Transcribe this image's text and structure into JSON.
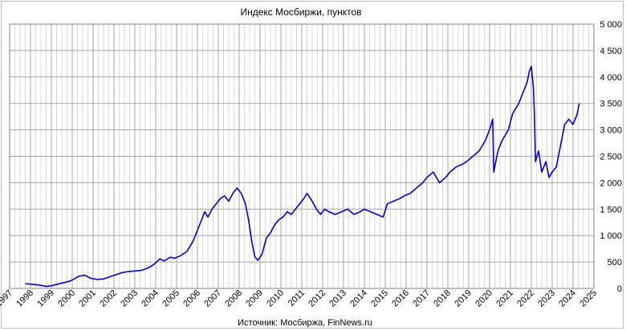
{
  "chart_data": {
    "type": "line",
    "title": "Индекс Мосбиржи, пунктов",
    "source": "Источник: Мосбиржа, FinNews.ru",
    "xlabel": "",
    "ylabel": "",
    "xlim": [
      1997,
      2025
    ],
    "ylim": [
      0,
      5000
    ],
    "x_ticks": [
      "1997",
      "1998",
      "1999",
      "2000",
      "2001",
      "2002",
      "2003",
      "2004",
      "2005",
      "2006",
      "2007",
      "2008",
      "2009",
      "2010",
      "2011",
      "2012",
      "2013",
      "2014",
      "2015",
      "2016",
      "2017",
      "2018",
      "2019",
      "2020",
      "2021",
      "2022",
      "2023",
      "2024",
      "2025"
    ],
    "y_ticks": [
      "0",
      "500",
      "1 000",
      "1 500",
      "2 000",
      "2 500",
      "3 000",
      "3 500",
      "4 000",
      "4 500",
      "5 000"
    ],
    "y_tick_values": [
      0,
      500,
      1000,
      1500,
      2000,
      2500,
      3000,
      3500,
      4000,
      4500,
      5000
    ],
    "grid": true,
    "legend": "none",
    "series": [
      {
        "color": "#0000cc",
        "x": [
          1997.75,
          1998.0,
          1998.3,
          1998.6,
          1998.8,
          1999.0,
          1999.3,
          1999.6,
          1999.9,
          2000.1,
          2000.3,
          2000.6,
          2000.9,
          2001.2,
          2001.5,
          2001.8,
          2002.1,
          2002.4,
          2002.7,
          2003.0,
          2003.3,
          2003.6,
          2003.9,
          2004.2,
          2004.4,
          2004.7,
          2004.9,
          2005.2,
          2005.5,
          2005.8,
          2006.0,
          2006.2,
          2006.35,
          2006.5,
          2006.7,
          2006.9,
          2007.1,
          2007.3,
          2007.5,
          2007.7,
          2007.9,
          2008.1,
          2008.3,
          2008.45,
          2008.6,
          2008.75,
          2008.9,
          2009.1,
          2009.3,
          2009.5,
          2009.7,
          2009.9,
          2010.1,
          2010.3,
          2010.5,
          2010.7,
          2010.9,
          2011.1,
          2011.25,
          2011.5,
          2011.7,
          2011.9,
          2012.1,
          2012.3,
          2012.6,
          2012.9,
          2013.2,
          2013.5,
          2013.8,
          2014.0,
          2014.3,
          2014.6,
          2014.9,
          2015.1,
          2015.4,
          2015.7,
          2015.9,
          2016.2,
          2016.5,
          2016.8,
          2017.0,
          2017.3,
          2017.6,
          2017.9,
          2018.1,
          2018.4,
          2018.7,
          2018.9,
          2019.2,
          2019.5,
          2019.8,
          2020.0,
          2020.15,
          2020.2,
          2020.4,
          2020.6,
          2020.9,
          2021.1,
          2021.4,
          2021.6,
          2021.8,
          2021.9,
          2022.0,
          2022.1,
          2022.15,
          2022.2,
          2022.35,
          2022.5,
          2022.7,
          2022.85,
          2023.0,
          2023.2,
          2023.4,
          2023.6,
          2023.8,
          2024.0,
          2024.2,
          2024.3
        ],
        "y": [
          90,
          80,
          70,
          50,
          40,
          50,
          80,
          110,
          140,
          180,
          230,
          250,
          190,
          170,
          180,
          220,
          260,
          300,
          320,
          330,
          340,
          380,
          450,
          560,
          520,
          590,
          570,
          620,
          700,
          900,
          1100,
          1300,
          1450,
          1350,
          1500,
          1600,
          1700,
          1750,
          1650,
          1800,
          1900,
          1800,
          1600,
          1300,
          900,
          600,
          530,
          650,
          950,
          1050,
          1200,
          1300,
          1350,
          1450,
          1400,
          1500,
          1600,
          1700,
          1800,
          1650,
          1500,
          1400,
          1500,
          1450,
          1400,
          1450,
          1500,
          1400,
          1450,
          1500,
          1450,
          1400,
          1350,
          1600,
          1650,
          1700,
          1750,
          1800,
          1900,
          2000,
          2100,
          2200,
          2000,
          2100,
          2200,
          2300,
          2350,
          2400,
          2500,
          2600,
          2800,
          3000,
          3200,
          2200,
          2600,
          2800,
          3000,
          3300,
          3500,
          3700,
          3900,
          4100,
          4200,
          3800,
          3300,
          2400,
          2600,
          2200,
          2400,
          2100,
          2200,
          2300,
          2700,
          3100,
          3200,
          3100,
          3300,
          3500
        ]
      }
    ]
  }
}
